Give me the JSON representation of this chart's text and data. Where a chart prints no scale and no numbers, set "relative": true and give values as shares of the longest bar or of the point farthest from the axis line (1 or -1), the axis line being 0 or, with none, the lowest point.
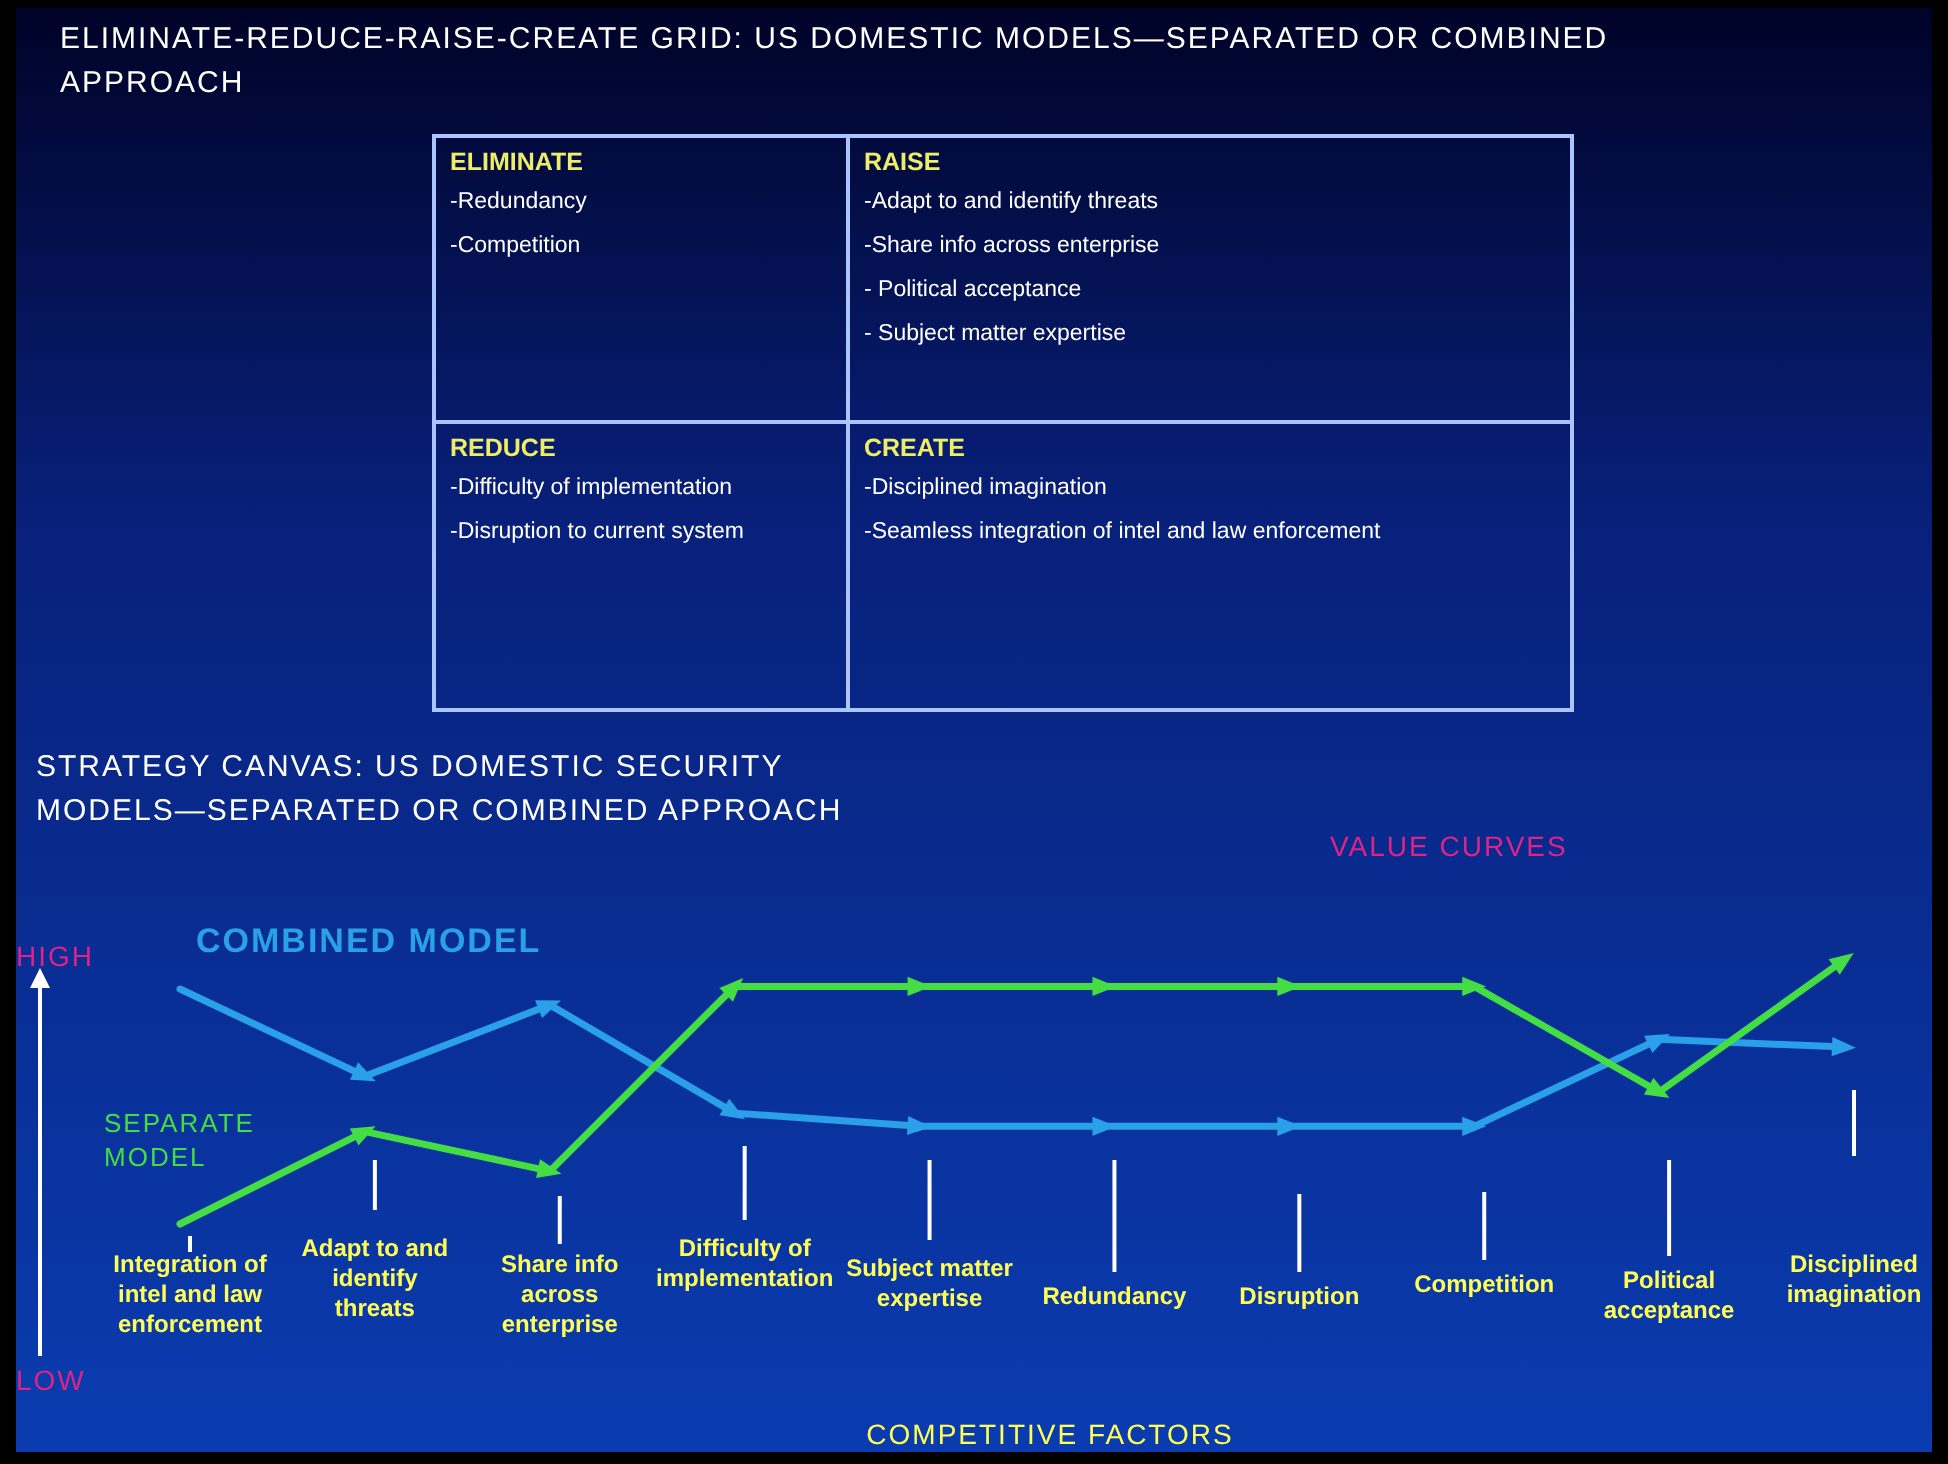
{
  "chart_data": [
    {
      "type": "other",
      "title": "ELIMINATE-REDUCE-RAISE-CREATE GRID:  US DOMESTIC MODELS—SEPARATED OR COMBINED APPROACH"
    },
    {
      "type": "other",
      "title": "ELIMINATE",
      "annotations": [
        "-Redundancy",
        "-Competition"
      ]
    },
    {
      "type": "other",
      "title": "RAISE",
      "annotations": [
        "-Adapt to and identify threats",
        "-Share info across enterprise",
        "- Political acceptance",
        "- Subject matter expertise"
      ]
    },
    {
      "type": "other",
      "title": "REDUCE",
      "annotations": [
        "-Difficulty of implementation",
        "-Disruption to current system"
      ]
    },
    {
      "type": "other",
      "title": "CREATE",
      "annotations": [
        "-Disciplined imagination",
        "-Seamless integration of intel and law enforcement"
      ]
    },
    {
      "type": "line",
      "title": "STRATEGY CANVAS:  US DOMESTIC SECURITY MODELS—SEPARATED OR COMBINED APPROACH",
      "xlabel": "COMPETITIVE FACTORS",
      "relative": true,
      "legend": false,
      "marker": "triangle",
      "line_style": "solid",
      "categories": [
        "Integration of intel and law enforcement",
        "Adapt to and identify threats",
        "Share info across enterprise",
        "Difficulty of implementation",
        "Subject matter expertise",
        "Redundancy",
        "Disruption",
        "Competition",
        "Political acceptance",
        "Disciplined imagination"
      ],
      "annotations": [
        "VALUE CURVES",
        "HIGH",
        "LOW"
      ],
      "series": [
        {
          "name": "COMBINED MODEL",
          "color": "#2aa0e8",
          "values": [
            0.89,
            0.56,
            0.83,
            0.42,
            0.37,
            0.37,
            0.37,
            0.37,
            0.7,
            0.67
          ]
        },
        {
          "name": "SEPARATE MODEL",
          "color": "#44dd44",
          "values": [
            0,
            0.35,
            0.2,
            0.9,
            0.9,
            0.9,
            0.9,
            0.9,
            0.5,
            1
          ]
        }
      ]
    }
  ]
}
